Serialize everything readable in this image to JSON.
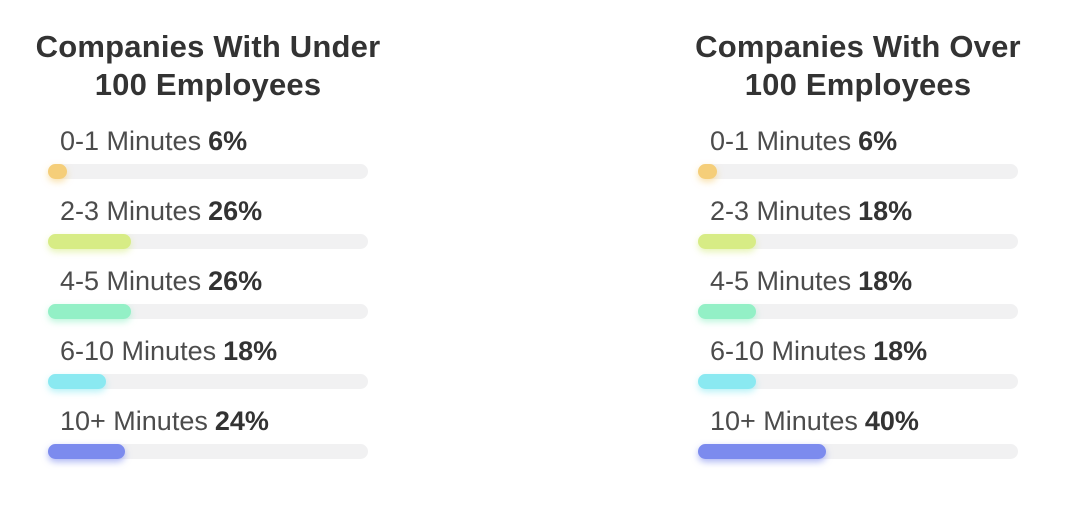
{
  "chart_data": [
    {
      "type": "bar",
      "orientation": "horizontal",
      "title": "Companies With Under 100 Employees",
      "title_lines": [
        "Companies With Under",
        "100 Employees"
      ],
      "categories": [
        "0-1 Minutes",
        "2-3 Minutes",
        "4-5 Minutes",
        "6-10 Minutes",
        "10+ Minutes"
      ],
      "values": [
        6,
        26,
        26,
        18,
        24
      ],
      "value_labels": [
        "6%",
        "26%",
        "26%",
        "18%",
        "24%"
      ],
      "unit": "%",
      "xlim": [
        0,
        100
      ],
      "grid": false,
      "legend": false,
      "bar_colors": [
        "#F5CE79",
        "#D7EC85",
        "#93F0C6",
        "#8AE9F1",
        "#7C8BEE"
      ],
      "track_color": "#F1F1F2"
    },
    {
      "type": "bar",
      "orientation": "horizontal",
      "title": "Companies With Over 100 Employees",
      "title_lines": [
        "Companies With Over",
        "100 Employees"
      ],
      "categories": [
        "0-1 Minutes",
        "2-3 Minutes",
        "4-5 Minutes",
        "6-10 Minutes",
        "10+ Minutes"
      ],
      "values": [
        6,
        18,
        18,
        18,
        40
      ],
      "value_labels": [
        "6%",
        "18%",
        "18%",
        "18%",
        "40%"
      ],
      "unit": "%",
      "xlim": [
        0,
        100
      ],
      "grid": false,
      "legend": false,
      "bar_colors": [
        "#F5CE79",
        "#D7EC85",
        "#93F0C6",
        "#8AE9F1",
        "#7C8BEE"
      ],
      "track_color": "#F1F1F2"
    }
  ],
  "text_colors": {
    "title": "#333333",
    "category_label": "#4C4C4C",
    "value_label": "#333333"
  }
}
